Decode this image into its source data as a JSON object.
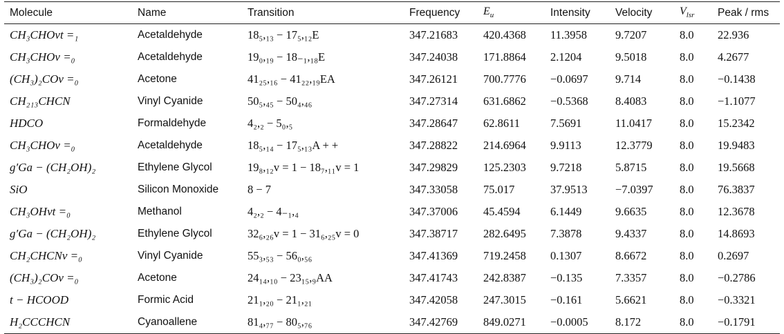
{
  "table": {
    "headers": [
      "Molecule",
      "Name",
      "Transition",
      "Frequency",
      "E_u",
      "Intensity",
      "Velocity",
      "V_lsr",
      "Peak / rms"
    ],
    "rows": [
      {
        "molecule": "CH₃CHOvt =₁",
        "name": "Acetaldehyde",
        "transition": "18₅,₁₃ − 17₅,₁₂E",
        "frequency": "347.21683",
        "eu": "420.4368",
        "intensity": "11.3958",
        "velocity": "9.7207",
        "vlsr": "8.0",
        "peak": "22.936"
      },
      {
        "molecule": "CH₃CHOv =₀",
        "name": "Acetaldehyde",
        "transition": "19₀,₁₉ − 18₋₁,₁₈E",
        "frequency": "347.24038",
        "eu": "171.8864",
        "intensity": "2.1204",
        "velocity": "9.5018",
        "vlsr": "8.0",
        "peak": "4.2677"
      },
      {
        "molecule": "(CH₃)₂COv =₀",
        "name": "Acetone",
        "transition": "41₂₅,₁₆ − 41₂₂,₁₉EA",
        "frequency": "347.26121",
        "eu": "700.7776",
        "intensity": "−0.0697",
        "velocity": "9.714",
        "vlsr": "8.0",
        "peak": "−0.1438"
      },
      {
        "molecule": "CH₂₁₃CHCN",
        "name": "Vinyl Cyanide",
        "transition": "50₅,₄₅ − 50₄,₄₆",
        "frequency": "347.27314",
        "eu": "631.6862",
        "intensity": "−0.5368",
        "velocity": "8.4083",
        "vlsr": "8.0",
        "peak": "−1.1077"
      },
      {
        "molecule": "HDCO",
        "name": "Formaldehyde",
        "transition": "4₂,₂ − 5₀,₅",
        "frequency": "347.28647",
        "eu": "62.8611",
        "intensity": "7.5691",
        "velocity": "11.0417",
        "vlsr": "8.0",
        "peak": "15.2342"
      },
      {
        "molecule": "CH₃CHOv =₀",
        "name": "Acetaldehyde",
        "transition": "18₅,₁₄ − 17₅,₁₃A + +",
        "frequency": "347.28822",
        "eu": "214.6964",
        "intensity": "9.9113",
        "velocity": "12.3779",
        "vlsr": "8.0",
        "peak": "19.9483"
      },
      {
        "molecule": "g′Ga − (CH₂OH)₂",
        "name": "Ethylene Glycol",
        "transition": "19₈,₁₂v = 1 − 18₇,₁₁v = 1",
        "frequency": "347.29829",
        "eu": "125.2303",
        "intensity": "9.7218",
        "velocity": "5.8715",
        "vlsr": "8.0",
        "peak": "19.5668"
      },
      {
        "molecule": "SiO",
        "name": "Silicon Monoxide",
        "transition": "8 − 7",
        "frequency": "347.33058",
        "eu": "75.017",
        "intensity": "37.9513",
        "velocity": "−7.0397",
        "vlsr": "8.0",
        "peak": "76.3837"
      },
      {
        "molecule": "CH₃OHvt =₀",
        "name": "Methanol",
        "transition": "4₂,₂ − 4₋₁,₄",
        "frequency": "347.37006",
        "eu": "45.4594",
        "intensity": "6.1449",
        "velocity": "9.6635",
        "vlsr": "8.0",
        "peak": "12.3678"
      },
      {
        "molecule": "g′Ga − (CH₂OH)₂",
        "name": "Ethylene Glycol",
        "transition": "32₆,₂₆v = 1 − 31₆,₂₅v = 0",
        "frequency": "347.38717",
        "eu": "282.6495",
        "intensity": "7.3878",
        "velocity": "9.4337",
        "vlsr": "8.0",
        "peak": "14.8693"
      },
      {
        "molecule": "CH₂CHCNv =₀",
        "name": "Vinyl Cyanide",
        "transition": "55₃,₅₃ − 56₀,₅₆",
        "frequency": "347.41369",
        "eu": "719.2458",
        "intensity": "0.1307",
        "velocity": "8.6672",
        "vlsr": "8.0",
        "peak": "0.2697"
      },
      {
        "molecule": "(CH₃)₂COv =₀",
        "name": "Acetone",
        "transition": "24₁₄,₁₀ − 23₁₅,₉AA",
        "frequency": "347.41743",
        "eu": "242.8387",
        "intensity": "−0.135",
        "velocity": "7.3357",
        "vlsr": "8.0",
        "peak": "−0.2786"
      },
      {
        "molecule": "t − HCOOD",
        "name": "Formic Acid",
        "transition": "21₁,₂₀ − 21₁,₂₁",
        "frequency": "347.42058",
        "eu": "247.3015",
        "intensity": "−0.161",
        "velocity": "5.6621",
        "vlsr": "8.0",
        "peak": "−0.3321"
      },
      {
        "molecule": "H₂CCCHCN",
        "name": "Cyanoallene",
        "transition": "81₄,₇₇ − 80₅,₇₆",
        "frequency": "347.42769",
        "eu": "849.0271",
        "intensity": "−0.0005",
        "velocity": "8.172",
        "vlsr": "8.0",
        "peak": "−0.1791"
      }
    ]
  }
}
